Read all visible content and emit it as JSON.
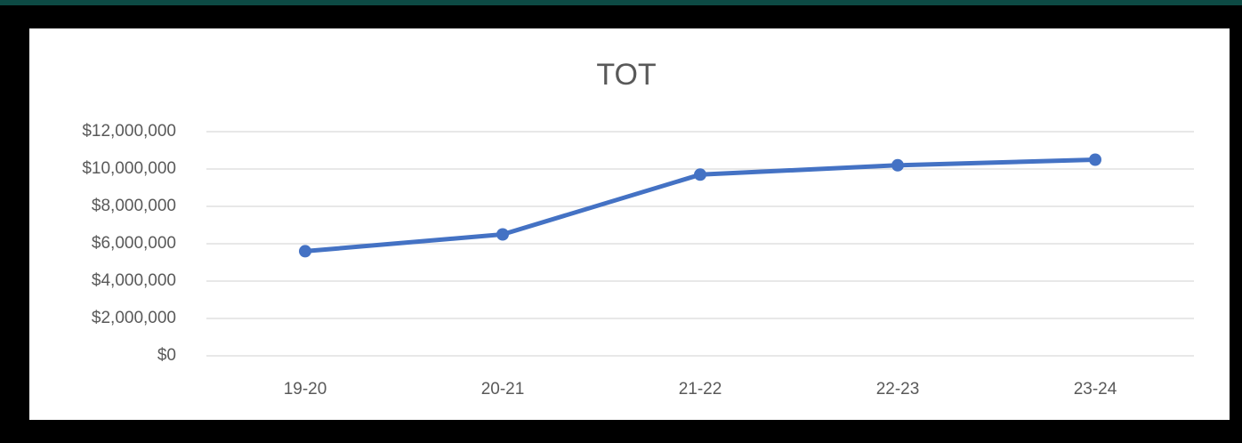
{
  "chart_data": {
    "type": "line",
    "title": "TOT",
    "categories": [
      "19-20",
      "20-21",
      "21-22",
      "22-23",
      "23-24"
    ],
    "series": [
      {
        "name": "TOT",
        "color": "#4472c4",
        "values": [
          5600000,
          6500000,
          9700000,
          10200000,
          10500000
        ]
      }
    ],
    "ylim": [
      0,
      12000000
    ],
    "yticks": [
      {
        "value": 0,
        "label": "$0"
      },
      {
        "value": 2000000,
        "label": "$2,000,000"
      },
      {
        "value": 4000000,
        "label": "$4,000,000"
      },
      {
        "value": 6000000,
        "label": "$6,000,000"
      },
      {
        "value": 8000000,
        "label": "$8,000,000"
      },
      {
        "value": 10000000,
        "label": "$10,000,000"
      },
      {
        "value": 12000000,
        "label": "$12,000,000"
      }
    ],
    "grid": true
  }
}
